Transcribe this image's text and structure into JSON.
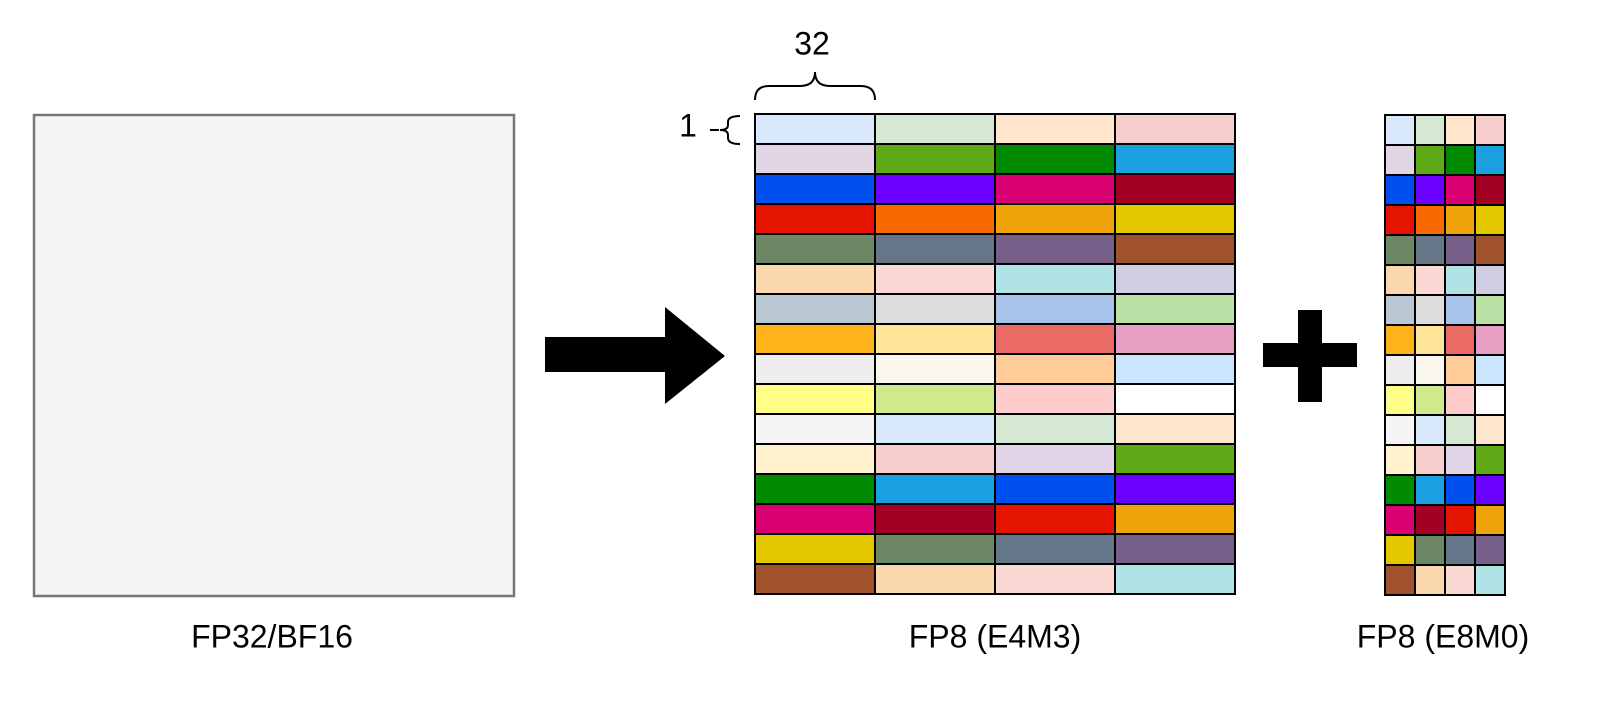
{
  "labels": {
    "block_width": "32",
    "block_height": "1",
    "source": "FP32/BF16",
    "elements": "FP8 (E4M3)",
    "scales": "FP8 (E8M0)"
  },
  "grid_colors": [
    [
      "#dae8fc",
      "#d5e8d4",
      "#ffe6cc",
      "#f8cecc"
    ],
    [
      "#e1d5e7",
      "#60a917",
      "#008a00",
      "#1ba1e2"
    ],
    [
      "#0050ef",
      "#6a00ff",
      "#d80073",
      "#a20025"
    ],
    [
      "#e51400",
      "#fa6800",
      "#f0a30a",
      "#e3c800"
    ],
    [
      "#6d8764",
      "#647687",
      "#76608a",
      "#a0522d"
    ],
    [
      "#fad7ac",
      "#fad9d5",
      "#b0e3e6",
      "#d0cee2"
    ],
    [
      "#bac8d3",
      "#dddddd",
      "#a9c4eb",
      "#b9e0a5"
    ],
    [
      "#ffb31a",
      "#ffe599",
      "#ea6b66",
      "#e6a0c4"
    ],
    [
      "#eeeeee",
      "#f9f7ed",
      "#ffcc99",
      "#cce5ff"
    ],
    [
      "#ffff88",
      "#cdeb8b",
      "#ffcccc",
      "#ffffff"
    ],
    [
      "#f5f5f5",
      "#dae8fc",
      "#d5e8d4",
      "#ffe6cc"
    ],
    [
      "#fff2cc",
      "#f8cecc",
      "#e1d5e7",
      "#60a917"
    ],
    [
      "#008a00",
      "#1ba1e2",
      "#0050ef",
      "#6a00ff"
    ],
    [
      "#d80073",
      "#a20025",
      "#e51400",
      "#f0a30a"
    ],
    [
      "#e3c800",
      "#6d8764",
      "#647687",
      "#76608a"
    ],
    [
      "#a0522d",
      "#fad7ac",
      "#fad9d5",
      "#b0e3e6"
    ]
  ]
}
